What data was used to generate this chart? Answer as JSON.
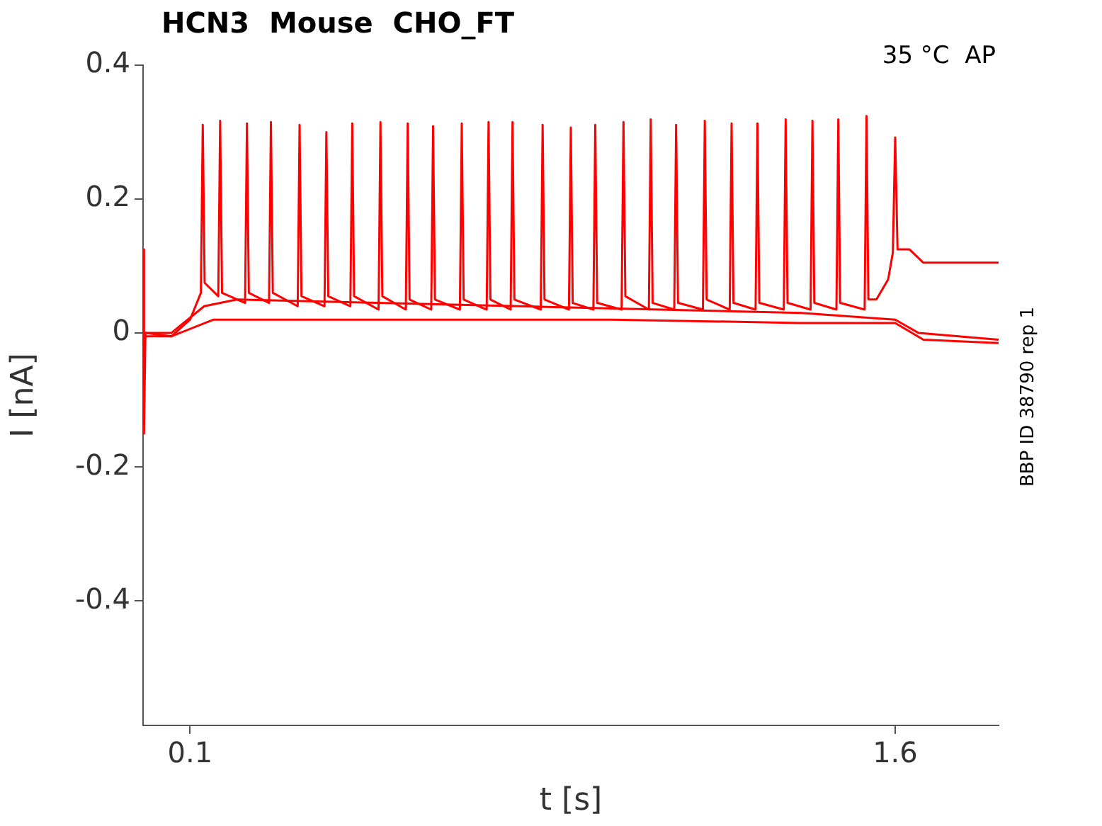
{
  "chart_data": {
    "type": "line",
    "title": "HCN3  Mouse  CHO_FT",
    "xlabel": "t [s]",
    "ylabel": "I [nA]",
    "annotations": [
      "35 °C  AP",
      "BBP ID 38790 rep 1"
    ],
    "xlim": [
      0,
      1.82
    ],
    "xticks": [
      0.1,
      1.6
    ],
    "ylim": [
      -0.586,
      0.4
    ],
    "yticks": [
      -0.4,
      -0.2,
      0,
      0.2,
      0.4
    ],
    "grid": false,
    "legend": false,
    "marker": "none",
    "line_style": "solid",
    "series": [
      {
        "color": "#ff0000",
        "x": [
          0,
          0.002,
          0.005,
          0.06,
          0.1,
          0.123,
          0.127,
          0.131,
          0.16,
          0.164,
          0.168,
          0.217,
          0.221,
          0.225,
          0.268,
          0.272,
          0.276,
          0.329,
          0.333,
          0.337,
          0.386,
          0.39,
          0.394,
          0.441,
          0.445,
          0.449,
          0.501,
          0.505,
          0.509,
          0.559,
          0.563,
          0.567,
          0.613,
          0.617,
          0.621,
          0.674,
          0.678,
          0.682,
          0.731,
          0.735,
          0.739,
          0.782,
          0.786,
          0.79,
          0.846,
          0.85,
          0.854,
          0.906,
          0.91,
          0.914,
          0.958,
          0.962,
          0.966,
          1.018,
          1.022,
          1.026,
          1.076,
          1.08,
          1.084,
          1.13,
          1.134,
          1.138,
          1.191,
          1.195,
          1.199,
          1.248,
          1.252,
          1.256,
          1.303,
          1.307,
          1.311,
          1.363,
          1.367,
          1.371,
          1.42,
          1.424,
          1.428,
          1.475,
          1.479,
          1.483,
          1.535,
          1.539,
          1.543,
          1.56,
          1.585,
          1.595,
          1.6,
          1.605,
          1.63,
          1.66,
          1.82
        ],
        "values": [
          0.125,
          -0.15,
          0,
          -0.005,
          0.02,
          0.06,
          0.311,
          0.075,
          0.055,
          0.317,
          0.06,
          0.045,
          0.313,
          0.06,
          0.045,
          0.315,
          0.06,
          0.04,
          0.311,
          0.055,
          0.04,
          0.3,
          0.055,
          0.04,
          0.313,
          0.055,
          0.035,
          0.315,
          0.055,
          0.035,
          0.313,
          0.05,
          0.035,
          0.309,
          0.05,
          0.035,
          0.313,
          0.05,
          0.035,
          0.315,
          0.05,
          0.035,
          0.315,
          0.05,
          0.035,
          0.311,
          0.05,
          0.035,
          0.307,
          0.045,
          0.035,
          0.311,
          0.045,
          0.035,
          0.315,
          0.055,
          0.035,
          0.319,
          0.045,
          0.035,
          0.311,
          0.045,
          0.035,
          0.317,
          0.05,
          0.035,
          0.313,
          0.045,
          0.035,
          0.313,
          0.045,
          0.035,
          0.319,
          0.045,
          0.035,
          0.317,
          0.045,
          0.035,
          0.319,
          0.045,
          0.035,
          0.324,
          0.05,
          0.05,
          0.08,
          0.12,
          0.292,
          0.125,
          0.125,
          0.105,
          0.105
        ]
      },
      {
        "color": "#ff0000",
        "x": [
          0,
          0.06,
          0.13,
          0.2,
          0.5,
          0.8,
          1.1,
          1.4,
          1.6,
          1.65,
          1.82
        ],
        "values": [
          0,
          0,
          0.04,
          0.05,
          0.045,
          0.04,
          0.035,
          0.03,
          0.02,
          0,
          -0.01
        ]
      },
      {
        "color": "#ff0000",
        "x": [
          0,
          0.06,
          0.15,
          0.5,
          1,
          1.4,
          1.6,
          1.66,
          1.82
        ],
        "values": [
          -0.005,
          -0.005,
          0.02,
          0.02,
          0.02,
          0.015,
          0.015,
          -0.01,
          -0.015
        ]
      }
    ]
  }
}
